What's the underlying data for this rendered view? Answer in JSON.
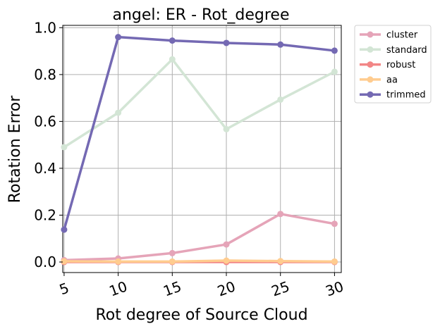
{
  "chart_data": {
    "type": "line",
    "title": "angel: ER - Rot_degree",
    "xlabel": "Rot degree of Source Cloud",
    "ylabel": "Rotation Error",
    "x": [
      5,
      10,
      15,
      20,
      25,
      30
    ],
    "x_tick_labels": [
      "5",
      "10",
      "15",
      "20",
      "25",
      "30"
    ],
    "y_tick_values": [
      0.0,
      0.2,
      0.4,
      0.6,
      0.8,
      1.0
    ],
    "y_tick_labels": [
      "0.0",
      "0.2",
      "0.4",
      "0.6",
      "0.8",
      "1.0"
    ],
    "xlim": [
      4.875,
      30.625
    ],
    "ylim": [
      -0.045,
      1.01
    ],
    "grid": true,
    "legend_placement": "outside-top-right",
    "series": [
      {
        "name": "cluster",
        "color": "#e5a4b8",
        "values": [
          0.008,
          0.015,
          0.038,
          0.075,
          0.205,
          0.163
        ]
      },
      {
        "name": "standard",
        "color": "#d3e5d5",
        "values": [
          0.49,
          0.637,
          0.865,
          0.567,
          0.693,
          0.812
        ]
      },
      {
        "name": "robust",
        "color": "#f28686",
        "values": [
          0.0,
          0.0,
          0.0,
          0.0,
          0.0,
          0.0
        ]
      },
      {
        "name": "aa",
        "color": "#ffcc8f",
        "values": [
          0.003,
          0.002,
          0.002,
          0.006,
          0.004,
          0.002
        ]
      },
      {
        "name": "trimmed",
        "color": "#7469b3",
        "values": [
          0.138,
          0.96,
          0.945,
          0.935,
          0.928,
          0.902
        ]
      }
    ]
  }
}
